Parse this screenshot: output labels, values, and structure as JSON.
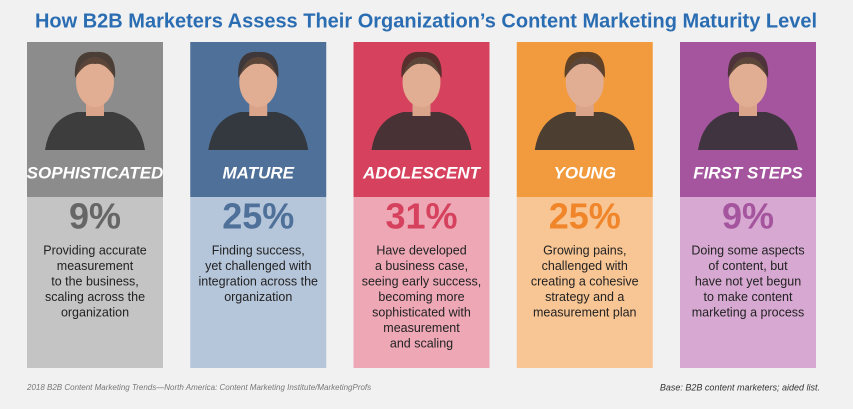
{
  "chart_data": {
    "type": "cards",
    "title": "How B2B Marketers Assess Their Organization’s Content Marketing Maturity Level",
    "categories": [
      "SOPHISTICATED",
      "MATURE",
      "ADOLESCENT",
      "YOUNG",
      "FIRST STEPS"
    ],
    "values": [
      9,
      25,
      31,
      25,
      9
    ],
    "value_labels": [
      "9%",
      "25%",
      "31%",
      "25%",
      "9%"
    ],
    "descriptions": [
      [
        "Providing accurate",
        "measurement",
        "to the business,",
        "scaling across the",
        "organization"
      ],
      [
        "Finding success,",
        "yet challenged with",
        "integration across the",
        "organization"
      ],
      [
        "Have developed",
        "a business case,",
        "seeing early success,",
        "becoming more",
        "sophisticated with",
        "measurement",
        "and scaling"
      ],
      [
        "Growing pains,",
        "challenged with",
        "creating a cohesive",
        "strategy and a",
        "measurement plan"
      ],
      [
        "Doing some aspects",
        "of content, but",
        "have not yet begun",
        "to make content",
        "marketing a process"
      ]
    ],
    "colors": [
      "#8c8c8c",
      "#4f7199",
      "#d6425d",
      "#f29b3e",
      "#a4559e"
    ],
    "light_colors": [
      "#c4c4c4",
      "#b5c5da",
      "#eda7b5",
      "#f8c594",
      "#d7a9d2"
    ],
    "value_colors": [
      "#666666",
      "#4f7199",
      "#d6425d",
      "#f0852a",
      "#a4559e"
    ],
    "source": "2018 B2B Content Marketing Trends—North America: Content Marketing Institute/MarketingProfs",
    "base_note": "Base: B2B content marketers; aided list."
  }
}
